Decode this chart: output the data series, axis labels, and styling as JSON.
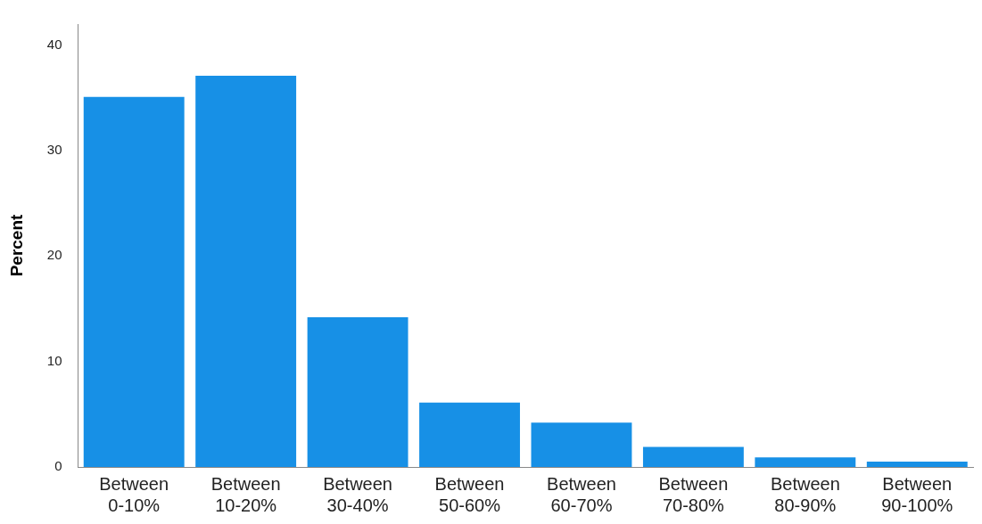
{
  "chart_data": {
    "type": "bar",
    "ylabel": "Percent",
    "categories": [
      "Between 0-10%",
      "Between 10-20%",
      "Between 30-40%",
      "Between 50-60%",
      "Between 60-70%",
      "Between 70-80%",
      "Between 80-90%",
      "Between 90-100%"
    ],
    "values": [
      35.1,
      37.1,
      14.2,
      6.1,
      4.2,
      1.9,
      0.9,
      0.5
    ],
    "color": "#1790e6",
    "ylim": [
      0,
      42
    ],
    "yticks": [
      0,
      10,
      20,
      30,
      40
    ],
    "grid": false,
    "legend": false
  }
}
